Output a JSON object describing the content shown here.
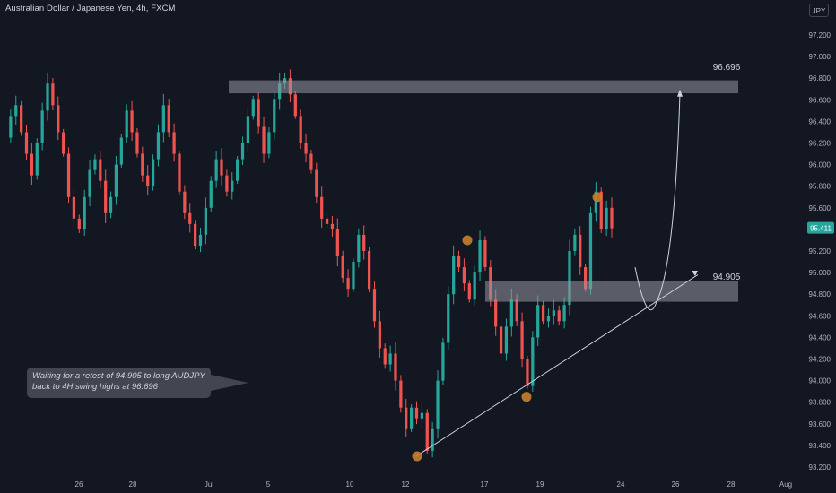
{
  "header": {
    "symbol_title": "Australian Dollar / Japanese Yen, 4h, FXCM",
    "currency_button": "JPY"
  },
  "annotations": {
    "note_line_1": "Waiting for a retest of 94.905 to long AUDJPY",
    "note_line_2": "back to 4H swing highs at 96.696"
  },
  "colors": {
    "background": "#131722",
    "up_candle": "#26a69a",
    "down_candle": "#ef5350",
    "zone_fill": "#9598a1",
    "swing_marker": "#c87f2e",
    "text": "#b2b5be"
  },
  "chart_data": {
    "type": "candlestick",
    "symbol": "AUDJPY",
    "timeframe": "4h",
    "source": "FXCM",
    "ylim": [
      93.1,
      97.4
    ],
    "y_ticks": [
      "97.200",
      "97.000",
      "96.800",
      "96.600",
      "96.400",
      "96.200",
      "96.000",
      "95.800",
      "95.600",
      "95.400",
      "95.200",
      "95.000",
      "94.800",
      "94.600",
      "94.400",
      "94.200",
      "94.000",
      "93.800",
      "93.600",
      "93.400",
      "93.200"
    ],
    "x_ticks": [
      "26",
      "28",
      "Jul",
      "5",
      "10",
      "12",
      "17",
      "19",
      "24",
      "26",
      "28",
      "Aug"
    ],
    "last_price_label": "95.411",
    "price_path": [
      96.25,
      96.45,
      96.55,
      96.3,
      96.1,
      95.9,
      96.2,
      96.5,
      96.75,
      96.55,
      96.3,
      96.1,
      95.7,
      95.5,
      95.4,
      95.7,
      95.95,
      96.05,
      95.85,
      95.55,
      95.7,
      96.0,
      96.25,
      96.5,
      96.3,
      96.1,
      95.9,
      95.8,
      96.05,
      96.3,
      96.55,
      96.3,
      96.1,
      95.75,
      95.55,
      95.45,
      95.25,
      95.35,
      95.6,
      95.85,
      96.05,
      95.9,
      95.75,
      95.85,
      96.05,
      96.2,
      96.45,
      96.6,
      96.35,
      96.1,
      96.3,
      96.6,
      96.75,
      96.8,
      96.65,
      96.45,
      96.2,
      96.1,
      95.95,
      95.7,
      95.5,
      95.45,
      95.4,
      95.15,
      94.95,
      94.85,
      95.1,
      95.35,
      95.2,
      94.85,
      94.55,
      94.3,
      94.15,
      94.25,
      94.0,
      93.75,
      93.55,
      93.75,
      93.65,
      93.7,
      93.35,
      93.55,
      94.0,
      94.35,
      94.8,
      95.15,
      95.05,
      94.9,
      94.75,
      95.0,
      95.3,
      95.05,
      94.75,
      94.5,
      94.25,
      94.5,
      94.75,
      94.55,
      94.2,
      93.95,
      94.4,
      94.7,
      94.55,
      94.6,
      94.65,
      94.55,
      94.7,
      95.2,
      95.35,
      95.05,
      94.85,
      95.55,
      95.75,
      95.4,
      95.6,
      95.411
    ],
    "levels": [
      {
        "label": "96.696",
        "value": 96.696,
        "zone_low": 96.66,
        "zone_high": 96.78
      },
      {
        "label": "94.905",
        "value": 94.905,
        "zone_low": 94.73,
        "zone_high": 94.92
      }
    ],
    "swing_points": [
      {
        "type": "low",
        "price": 93.3
      },
      {
        "type": "high",
        "price": 95.3
      },
      {
        "type": "low",
        "price": 93.85
      },
      {
        "type": "high",
        "price": 95.7
      }
    ],
    "trendline": {
      "from_price": 93.3,
      "to_price": 94.98
    },
    "projection": {
      "start_price": 95.05,
      "retest_price": 94.73,
      "target_price": 96.696
    }
  }
}
